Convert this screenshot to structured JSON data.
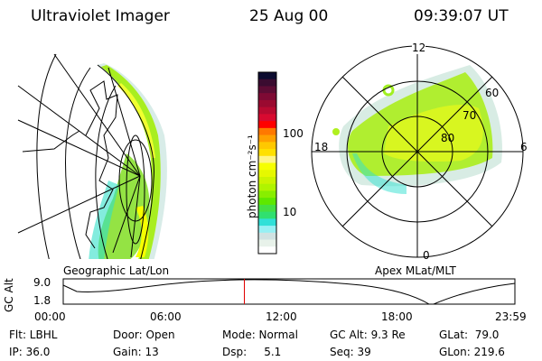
{
  "header": {
    "instrument": "Ultraviolet Imager",
    "date": "25 Aug 00",
    "time": "09:39:07 UT"
  },
  "left_panel": {
    "label": "Geographic Lat/Lon"
  },
  "right_panel": {
    "label": "Apex MLat/MLT",
    "mlt_labels": [
      "12",
      "18",
      "6",
      "0"
    ],
    "mlat_labels": [
      "60",
      "70",
      "80"
    ]
  },
  "colorbar": {
    "unit_label": "photon cm⁻²s⁻¹",
    "ticks": [
      "100",
      "10"
    ],
    "colors": [
      "#0c0c30",
      "#3a0c30",
      "#5c0c34",
      "#7e0a34",
      "#9a0a30",
      "#b80a30",
      "#d80a30",
      "#ff0000",
      "#ff7800",
      "#ffa000",
      "#ffc800",
      "#ffe000",
      "#fff484",
      "#f6ff00",
      "#e6f800",
      "#ccf400",
      "#b0f400",
      "#88ee00",
      "#5ee800",
      "#44e044",
      "#30e070",
      "#30e0d8",
      "#96f0f4",
      "#d0e2e2",
      "#e8f2ea",
      "#ffffff"
    ]
  },
  "timeline": {
    "ylabel": "GC Alt",
    "yticks": [
      "9.0",
      "1.8"
    ],
    "xticks": [
      "00:00",
      "06:00",
      "12:00",
      "18:00",
      "23:59"
    ],
    "current_fraction": 0.401,
    "marker_color": "#e00000"
  },
  "status": {
    "row1": [
      "Flt: LBHL",
      "Door: Open",
      "Mode: Normal",
      "GC Alt: 9.3 Re",
      "GLat:  79.0"
    ],
    "row2": [
      "IP: 36.0",
      "Gain: 13",
      "Dsp:     5.1",
      "Seq: 39",
      "GLon: 219.6"
    ]
  }
}
